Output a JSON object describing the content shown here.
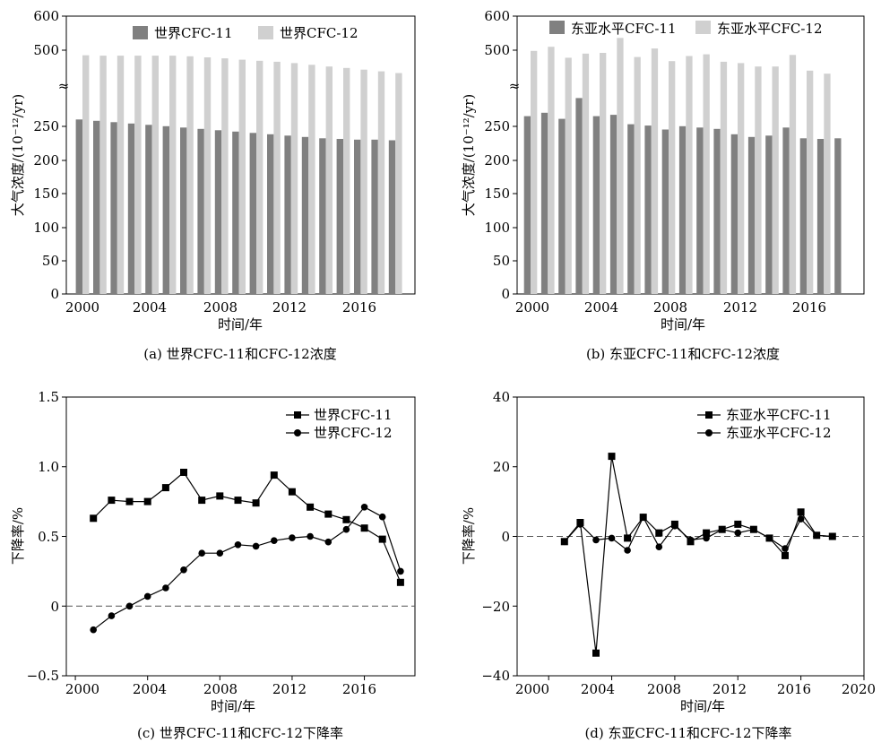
{
  "chart_data": [
    {
      "id": "a",
      "type": "bar",
      "caption": "(a)  世界CFC-11和CFC-12浓度",
      "xlabel": "时间/年",
      "ylabel": "大气浓度/(10⁻¹²/yr)",
      "y_ticks": [
        "0",
        "50",
        "100",
        "150",
        "200",
        "250",
        "500",
        "600"
      ],
      "x_ticks": [
        "2000",
        "2004",
        "2008",
        "2012",
        "2016"
      ],
      "axis_break": "≈",
      "x": [
        2000,
        2001,
        2002,
        2003,
        2004,
        2005,
        2006,
        2007,
        2008,
        2009,
        2010,
        2011,
        2012,
        2013,
        2014,
        2015,
        2016,
        2017,
        2018
      ],
      "legend_position": "top",
      "series": [
        {
          "name": "世界CFC-11",
          "color": "#808080",
          "values": [
            260,
            258,
            256,
            254,
            252,
            250,
            248,
            246,
            244,
            242,
            240,
            238,
            236,
            234,
            232,
            231,
            230,
            230,
            229
          ]
        },
        {
          "name": "世界CFC-12",
          "color": "#d0d0d0",
          "values": [
            485,
            484,
            484,
            484,
            484,
            484,
            482,
            479,
            476,
            472,
            469,
            466,
            462,
            457,
            452,
            448,
            443,
            438,
            433
          ]
        }
      ]
    },
    {
      "id": "b",
      "type": "bar",
      "caption": "(b)  东亚CFC-11和CFC-12浓度",
      "xlabel": "时间/年",
      "ylabel": "大气浓度/(10⁻¹²/yr)",
      "y_ticks": [
        "0",
        "50",
        "100",
        "150",
        "200",
        "250",
        "500",
        "600"
      ],
      "x_ticks": [
        "2000",
        "2004",
        "2008",
        "2016"
      ],
      "axis_break": "≈",
      "x": [
        2000,
        2001,
        2002,
        2003,
        2004,
        2005,
        2006,
        2007,
        2008,
        2009,
        2010,
        2011,
        2012,
        2013,
        2014,
        2015,
        2016,
        2017,
        2018
      ],
      "legend_position": "top",
      "series": [
        {
          "name": "东亚水平CFC-11",
          "color": "#808080",
          "values": [
            265,
            270,
            261,
            292,
            265,
            267,
            253,
            251,
            245,
            250,
            248,
            246,
            238,
            234,
            236,
            248,
            232,
            231,
            232
          ]
        },
        {
          "name": "东亚水平CFC-12",
          "color": "#d0d0d0",
          "values": [
            498,
            510,
            478,
            490,
            492,
            536,
            480,
            505,
            468,
            483,
            488,
            466,
            462,
            452,
            452,
            486,
            440,
            431,
            null
          ]
        }
      ]
    },
    {
      "id": "c",
      "type": "line",
      "caption": "(c)  世界CFC-11和CFC-12下降率",
      "xlabel": "时间/年",
      "ylabel": "下降率/%",
      "ylim": [
        -0.5,
        1.5
      ],
      "y_ticks": [
        "−0.5",
        "0",
        "0.5",
        "1.0",
        "1.5"
      ],
      "x_ticks": [
        "2000",
        "2004",
        "2008",
        "2012",
        "2016"
      ],
      "xlim": [
        1999.5,
        2018.8
      ],
      "x": [
        2001,
        2002,
        2003,
        2004,
        2005,
        2006,
        2007,
        2008,
        2009,
        2010,
        2011,
        2012,
        2013,
        2014,
        2015,
        2016,
        2017,
        2018
      ],
      "zero_line": "dashed",
      "legend_position": "top-right",
      "series": [
        {
          "name": "世界CFC-11",
          "marker": "square",
          "values": [
            0.63,
            0.76,
            0.75,
            0.75,
            0.85,
            0.96,
            0.76,
            0.79,
            0.76,
            0.74,
            0.94,
            0.82,
            0.71,
            0.66,
            0.62,
            0.56,
            0.48,
            0.17
          ]
        },
        {
          "name": "世界CFC-12",
          "marker": "circle",
          "values": [
            -0.17,
            -0.07,
            0.0,
            0.07,
            0.13,
            0.26,
            0.38,
            0.38,
            0.44,
            0.43,
            0.47,
            0.49,
            0.5,
            0.46,
            0.55,
            0.71,
            0.64,
            0.25
          ]
        }
      ]
    },
    {
      "id": "d",
      "type": "line",
      "caption": "(d)  东亚CFC-11和CFC-12下降率",
      "xlabel": "时间/年",
      "ylabel": "下降率/%",
      "ylim": [
        -40,
        40
      ],
      "y_ticks": [
        "−40",
        "−20",
        "0",
        "20",
        "40"
      ],
      "x_ticks": [
        "2000",
        "2004",
        "2008",
        "2012",
        "2016",
        "2020"
      ],
      "xlim": [
        1998,
        2020
      ],
      "x": [
        2001,
        2002,
        2003,
        2004,
        2005,
        2006,
        2007,
        2008,
        2009,
        2010,
        2011,
        2012,
        2013,
        2014,
        2015,
        2016,
        2017,
        2018
      ],
      "zero_line": "dashed",
      "legend_position": "top-right",
      "series": [
        {
          "name": "东亚水平CFC-11",
          "marker": "square",
          "values": [
            -1.5,
            4.0,
            -33.5,
            23.0,
            -0.5,
            5.5,
            1.0,
            3.5,
            -1.5,
            1.0,
            2.0,
            3.5,
            2.0,
            -0.5,
            -5.5,
            7.0,
            0.3,
            0.0
          ]
        },
        {
          "name": "东亚水平CFC-12",
          "marker": "circle",
          "values": [
            -1.5,
            3.5,
            -1.0,
            -0.5,
            -4.0,
            5.5,
            -3.0,
            3.0,
            -1.0,
            -0.5,
            2.0,
            1.0,
            2.0,
            -0.5,
            -3.5,
            5.0,
            0.3,
            0.0
          ]
        }
      ]
    }
  ]
}
